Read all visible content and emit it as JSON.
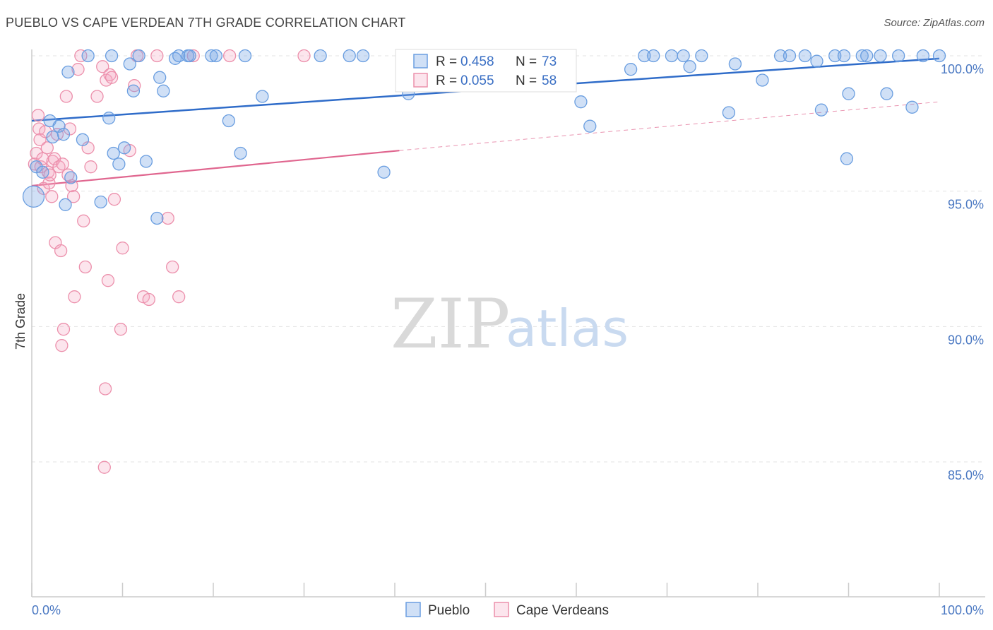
{
  "title": "PUEBLO VS CAPE VERDEAN 7TH GRADE CORRELATION CHART",
  "source": "Source: ZipAtlas.com",
  "watermark": {
    "zip": "ZIP",
    "atlas": "atlas"
  },
  "colors": {
    "blue": "#6a9ee0",
    "blue_fill": "rgba(120,165,230,0.35)",
    "blue_line": "#2f6cc9",
    "pink": "#ec90ac",
    "pink_fill": "rgba(245,170,195,0.30)",
    "pink_line": "#e0668f",
    "grid": "#e3e3e3",
    "axis_text": "#4a78c2"
  },
  "legend": {
    "rows": [
      {
        "r_label": "R = ",
        "r_value": "0.458",
        "n_label": "N = ",
        "n_value": "73"
      },
      {
        "r_label": "R = ",
        "r_value": "0.055",
        "n_label": "N = ",
        "n_value": "58"
      }
    ]
  },
  "bottom_legend": [
    "Pueblo",
    "Cape Verdeans"
  ],
  "chart_data": {
    "type": "scatter",
    "title": "PUEBLO VS CAPE VERDEAN 7TH GRADE CORRELATION CHART",
    "xlabel": "",
    "ylabel": "7th Grade",
    "xlim": [
      0,
      100
    ],
    "ylim": [
      80.5,
      100.3
    ],
    "x_tick_labels": [
      "0.0%",
      "100.0%"
    ],
    "y_ticks": [
      85,
      90,
      95,
      100
    ],
    "y_tick_labels": [
      "85.0%",
      "90.0%",
      "95.0%",
      "100.0%"
    ],
    "grid": true,
    "series": [
      {
        "name": "Pueblo",
        "r": 0.458,
        "n": 73,
        "trend": {
          "x0": 0,
          "y0": 97.6,
          "x1": 100,
          "y1": 99.9
        },
        "points": [
          [
            0.2,
            94.8
          ],
          [
            0.5,
            95.9
          ],
          [
            1.2,
            95.7
          ],
          [
            2.0,
            97.6
          ],
          [
            2.3,
            97.0
          ],
          [
            3.0,
            97.4
          ],
          [
            3.5,
            97.1
          ],
          [
            3.7,
            94.5
          ],
          [
            4.0,
            99.4
          ],
          [
            4.3,
            95.5
          ],
          [
            5.6,
            96.9
          ],
          [
            6.2,
            100.0
          ],
          [
            7.6,
            94.6
          ],
          [
            8.5,
            97.7
          ],
          [
            8.8,
            100.0
          ],
          [
            9.0,
            96.4
          ],
          [
            9.6,
            96.0
          ],
          [
            10.2,
            96.6
          ],
          [
            10.8,
            99.7
          ],
          [
            11.2,
            98.7
          ],
          [
            11.8,
            100.0
          ],
          [
            12.6,
            96.1
          ],
          [
            13.8,
            94.0
          ],
          [
            14.1,
            99.2
          ],
          [
            14.5,
            98.7
          ],
          [
            15.8,
            99.9
          ],
          [
            16.2,
            100.0
          ],
          [
            17.2,
            100.0
          ],
          [
            17.4,
            100.0
          ],
          [
            19.8,
            100.0
          ],
          [
            20.3,
            100.0
          ],
          [
            21.7,
            97.6
          ],
          [
            23.0,
            96.4
          ],
          [
            23.5,
            100.0
          ],
          [
            25.4,
            98.5
          ],
          [
            31.8,
            100.0
          ],
          [
            35.0,
            100.0
          ],
          [
            36.5,
            100.0
          ],
          [
            38.8,
            95.7
          ],
          [
            41.0,
            100.0
          ],
          [
            41.5,
            98.6
          ],
          [
            43.5,
            100.0
          ],
          [
            46.2,
            100.0
          ],
          [
            54.0,
            100.0
          ],
          [
            60.5,
            98.3
          ],
          [
            61.5,
            97.4
          ],
          [
            66.0,
            99.5
          ],
          [
            67.5,
            100.0
          ],
          [
            68.5,
            100.0
          ],
          [
            70.5,
            100.0
          ],
          [
            71.8,
            100.0
          ],
          [
            72.5,
            99.6
          ],
          [
            73.8,
            100.0
          ],
          [
            76.8,
            97.9
          ],
          [
            77.5,
            99.7
          ],
          [
            80.5,
            99.1
          ],
          [
            82.5,
            100.0
          ],
          [
            83.5,
            100.0
          ],
          [
            85.2,
            100.0
          ],
          [
            86.5,
            99.8
          ],
          [
            87.0,
            98.0
          ],
          [
            88.5,
            100.0
          ],
          [
            89.5,
            100.0
          ],
          [
            89.8,
            96.2
          ],
          [
            90.0,
            98.6
          ],
          [
            91.5,
            100.0
          ],
          [
            92.0,
            100.0
          ],
          [
            93.5,
            100.0
          ],
          [
            94.2,
            98.6
          ],
          [
            95.5,
            100.0
          ],
          [
            97.0,
            98.1
          ],
          [
            100.0,
            100.0
          ],
          [
            98.2,
            100.0
          ]
        ]
      },
      {
        "name": "Cape Verdeans",
        "r": 0.055,
        "n": 58,
        "trend": {
          "x0": 0,
          "y0": 95.2,
          "x1": 40.5,
          "y1": 96.5,
          "dashed_x1": 100,
          "dashed_y1": 98.3
        },
        "points": [
          [
            0.3,
            96.0
          ],
          [
            0.5,
            96.4
          ],
          [
            0.7,
            97.8
          ],
          [
            0.8,
            97.3
          ],
          [
            0.9,
            96.9
          ],
          [
            1.0,
            95.9
          ],
          [
            1.2,
            96.2
          ],
          [
            1.3,
            95.1
          ],
          [
            1.5,
            97.2
          ],
          [
            1.7,
            96.6
          ],
          [
            1.8,
            95.7
          ],
          [
            1.9,
            95.3
          ],
          [
            2.0,
            95.6
          ],
          [
            2.2,
            94.8
          ],
          [
            2.3,
            96.1
          ],
          [
            2.5,
            96.2
          ],
          [
            2.6,
            93.1
          ],
          [
            2.8,
            97.1
          ],
          [
            3.0,
            95.9
          ],
          [
            3.2,
            92.8
          ],
          [
            3.3,
            89.3
          ],
          [
            3.4,
            96.0
          ],
          [
            3.5,
            89.9
          ],
          [
            3.8,
            98.5
          ],
          [
            4.0,
            95.6
          ],
          [
            4.2,
            97.3
          ],
          [
            4.4,
            95.2
          ],
          [
            4.6,
            94.8
          ],
          [
            4.7,
            91.1
          ],
          [
            5.1,
            99.5
          ],
          [
            5.4,
            100.0
          ],
          [
            5.7,
            93.9
          ],
          [
            5.9,
            92.2
          ],
          [
            6.2,
            96.6
          ],
          [
            6.5,
            95.9
          ],
          [
            7.2,
            98.5
          ],
          [
            7.8,
            99.6
          ],
          [
            8.1,
            87.7
          ],
          [
            8.2,
            99.1
          ],
          [
            8.4,
            91.7
          ],
          [
            8.6,
            99.3
          ],
          [
            8.8,
            99.2
          ],
          [
            9.1,
            94.7
          ],
          [
            9.8,
            89.9
          ],
          [
            10.0,
            92.9
          ],
          [
            10.8,
            96.5
          ],
          [
            11.3,
            98.9
          ],
          [
            11.6,
            100.0
          ],
          [
            12.3,
            91.1
          ],
          [
            12.9,
            91.0
          ],
          [
            13.8,
            100.0
          ],
          [
            15.0,
            94.0
          ],
          [
            15.5,
            92.2
          ],
          [
            16.2,
            91.1
          ],
          [
            17.8,
            100.0
          ],
          [
            21.8,
            100.0
          ],
          [
            30.0,
            100.0
          ],
          [
            8.0,
            84.8
          ]
        ]
      }
    ]
  }
}
